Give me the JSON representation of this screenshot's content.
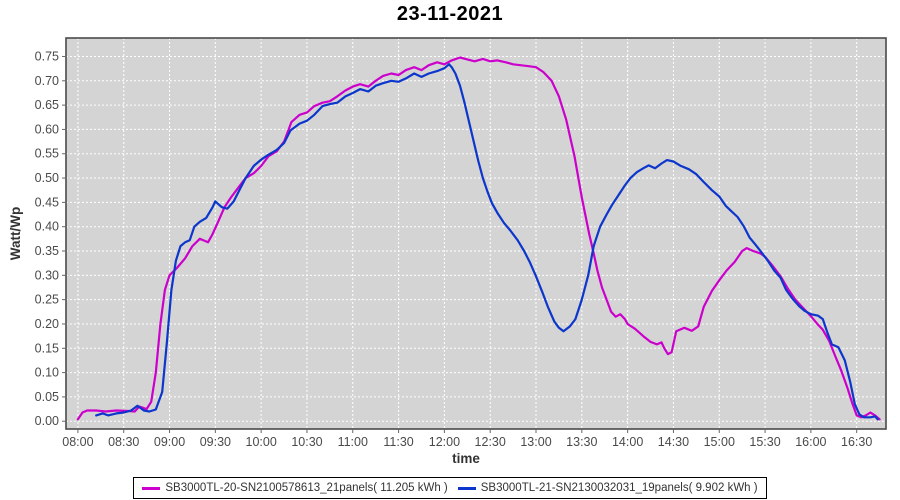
{
  "title": "23-11-2021",
  "legend": {
    "series1_label": "SB3000TL-20-SN2100578613_21panels( 11.205 kWh )",
    "series2_label": "SB3000TL-21-SN2130032031_19panels( 9.902 kWh )"
  },
  "colors": {
    "series1": "#CC00CC",
    "series2": "#0C36CC",
    "plot_background": "#D4D4D4",
    "grid": "#FFFFFF",
    "plot_border": "#4A4A4A",
    "tick_text": "#4A4A4A",
    "axis_label_text": "#333333"
  },
  "chart_data": {
    "type": "line",
    "title": "23-11-2021",
    "xlabel": "time",
    "ylabel": "Watt/Wp",
    "grid": true,
    "legend_position": "bottom",
    "x_ticks": [
      "08:00",
      "08:30",
      "09:00",
      "09:30",
      "10:00",
      "10:30",
      "11:00",
      "11:30",
      "12:00",
      "12:30",
      "13:00",
      "13:30",
      "14:00",
      "14:30",
      "15:00",
      "15:30",
      "16:00",
      "16:30"
    ],
    "y_ticks": [
      0.0,
      0.05,
      0.1,
      0.15,
      0.2,
      0.25,
      0.3,
      0.35,
      0.4,
      0.45,
      0.5,
      0.55,
      0.6,
      0.65,
      0.7,
      0.75
    ],
    "xlim_hours": [
      7.87,
      16.82
    ],
    "ylim": [
      -0.016,
      0.788
    ],
    "series": [
      {
        "name": "SB3000TL-20-SN2100578613_21panels( 11.205 kWh )",
        "color": "#CC00CC",
        "points": [
          [
            8.0,
            0.004
          ],
          [
            8.05,
            0.018
          ],
          [
            8.1,
            0.022
          ],
          [
            8.2,
            0.022
          ],
          [
            8.3,
            0.02
          ],
          [
            8.42,
            0.022
          ],
          [
            8.55,
            0.021
          ],
          [
            8.62,
            0.02
          ],
          [
            8.67,
            0.03
          ],
          [
            8.72,
            0.027
          ],
          [
            8.75,
            0.025
          ],
          [
            8.8,
            0.04
          ],
          [
            8.85,
            0.1
          ],
          [
            8.9,
            0.2
          ],
          [
            8.95,
            0.27
          ],
          [
            9.0,
            0.3
          ],
          [
            9.08,
            0.315
          ],
          [
            9.17,
            0.335
          ],
          [
            9.25,
            0.36
          ],
          [
            9.33,
            0.375
          ],
          [
            9.42,
            0.368
          ],
          [
            9.47,
            0.385
          ],
          [
            9.53,
            0.41
          ],
          [
            9.6,
            0.44
          ],
          [
            9.67,
            0.46
          ],
          [
            9.75,
            0.48
          ],
          [
            9.83,
            0.5
          ],
          [
            9.92,
            0.51
          ],
          [
            10.0,
            0.525
          ],
          [
            10.08,
            0.545
          ],
          [
            10.17,
            0.555
          ],
          [
            10.25,
            0.575
          ],
          [
            10.33,
            0.615
          ],
          [
            10.42,
            0.63
          ],
          [
            10.5,
            0.635
          ],
          [
            10.58,
            0.648
          ],
          [
            10.67,
            0.655
          ],
          [
            10.75,
            0.658
          ],
          [
            10.83,
            0.668
          ],
          [
            10.92,
            0.68
          ],
          [
            11.0,
            0.688
          ],
          [
            11.08,
            0.693
          ],
          [
            11.17,
            0.688
          ],
          [
            11.25,
            0.7
          ],
          [
            11.33,
            0.71
          ],
          [
            11.42,
            0.715
          ],
          [
            11.5,
            0.712
          ],
          [
            11.58,
            0.722
          ],
          [
            11.67,
            0.728
          ],
          [
            11.75,
            0.722
          ],
          [
            11.83,
            0.732
          ],
          [
            11.92,
            0.738
          ],
          [
            12.0,
            0.734
          ],
          [
            12.08,
            0.742
          ],
          [
            12.17,
            0.748
          ],
          [
            12.25,
            0.744
          ],
          [
            12.33,
            0.74
          ],
          [
            12.42,
            0.745
          ],
          [
            12.5,
            0.74
          ],
          [
            12.58,
            0.742
          ],
          [
            12.67,
            0.738
          ],
          [
            12.75,
            0.734
          ],
          [
            12.83,
            0.732
          ],
          [
            12.92,
            0.73
          ],
          [
            13.0,
            0.728
          ],
          [
            13.08,
            0.718
          ],
          [
            13.17,
            0.7
          ],
          [
            13.25,
            0.668
          ],
          [
            13.33,
            0.62
          ],
          [
            13.42,
            0.545
          ],
          [
            13.5,
            0.46
          ],
          [
            13.58,
            0.385
          ],
          [
            13.63,
            0.345
          ],
          [
            13.67,
            0.31
          ],
          [
            13.72,
            0.275
          ],
          [
            13.77,
            0.25
          ],
          [
            13.82,
            0.225
          ],
          [
            13.87,
            0.215
          ],
          [
            13.92,
            0.22
          ],
          [
            13.97,
            0.21
          ],
          [
            14.0,
            0.2
          ],
          [
            14.08,
            0.19
          ],
          [
            14.17,
            0.175
          ],
          [
            14.25,
            0.163
          ],
          [
            14.32,
            0.158
          ],
          [
            14.37,
            0.162
          ],
          [
            14.4,
            0.15
          ],
          [
            14.44,
            0.138
          ],
          [
            14.48,
            0.142
          ],
          [
            14.53,
            0.185
          ],
          [
            14.62,
            0.192
          ],
          [
            14.7,
            0.186
          ],
          [
            14.77,
            0.195
          ],
          [
            14.83,
            0.235
          ],
          [
            14.92,
            0.268
          ],
          [
            15.0,
            0.29
          ],
          [
            15.08,
            0.31
          ],
          [
            15.17,
            0.328
          ],
          [
            15.25,
            0.35
          ],
          [
            15.3,
            0.356
          ],
          [
            15.37,
            0.35
          ],
          [
            15.45,
            0.345
          ],
          [
            15.5,
            0.338
          ],
          [
            15.58,
            0.32
          ],
          [
            15.67,
            0.298
          ],
          [
            15.75,
            0.272
          ],
          [
            15.83,
            0.25
          ],
          [
            15.92,
            0.232
          ],
          [
            16.0,
            0.216
          ],
          [
            16.08,
            0.198
          ],
          [
            16.13,
            0.188
          ],
          [
            16.2,
            0.165
          ],
          [
            16.27,
            0.132
          ],
          [
            16.33,
            0.105
          ],
          [
            16.4,
            0.068
          ],
          [
            16.45,
            0.038
          ],
          [
            16.5,
            0.012
          ],
          [
            16.55,
            0.008
          ],
          [
            16.6,
            0.012
          ],
          [
            16.65,
            0.018
          ],
          [
            16.7,
            0.012
          ],
          [
            16.75,
            0.004
          ]
        ]
      },
      {
        "name": "SB3000TL-21-SN2130032031_19panels( 9.902 kWh )",
        "color": "#0C36CC",
        "points": [
          [
            8.2,
            0.012
          ],
          [
            8.27,
            0.016
          ],
          [
            8.33,
            0.012
          ],
          [
            8.42,
            0.016
          ],
          [
            8.5,
            0.018
          ],
          [
            8.58,
            0.022
          ],
          [
            8.65,
            0.032
          ],
          [
            8.72,
            0.022
          ],
          [
            8.78,
            0.02
          ],
          [
            8.85,
            0.024
          ],
          [
            8.92,
            0.06
          ],
          [
            8.97,
            0.16
          ],
          [
            9.02,
            0.27
          ],
          [
            9.07,
            0.33
          ],
          [
            9.12,
            0.36
          ],
          [
            9.17,
            0.368
          ],
          [
            9.22,
            0.372
          ],
          [
            9.27,
            0.4
          ],
          [
            9.33,
            0.41
          ],
          [
            9.4,
            0.418
          ],
          [
            9.47,
            0.44
          ],
          [
            9.5,
            0.452
          ],
          [
            9.57,
            0.44
          ],
          [
            9.63,
            0.437
          ],
          [
            9.7,
            0.452
          ],
          [
            9.77,
            0.478
          ],
          [
            9.83,
            0.5
          ],
          [
            9.92,
            0.525
          ],
          [
            10.0,
            0.538
          ],
          [
            10.08,
            0.548
          ],
          [
            10.17,
            0.558
          ],
          [
            10.25,
            0.572
          ],
          [
            10.32,
            0.598
          ],
          [
            10.42,
            0.612
          ],
          [
            10.5,
            0.618
          ],
          [
            10.58,
            0.63
          ],
          [
            10.67,
            0.648
          ],
          [
            10.75,
            0.652
          ],
          [
            10.83,
            0.655
          ],
          [
            10.92,
            0.668
          ],
          [
            11.0,
            0.675
          ],
          [
            11.08,
            0.683
          ],
          [
            11.17,
            0.678
          ],
          [
            11.25,
            0.69
          ],
          [
            11.33,
            0.695
          ],
          [
            11.42,
            0.7
          ],
          [
            11.5,
            0.698
          ],
          [
            11.58,
            0.705
          ],
          [
            11.67,
            0.715
          ],
          [
            11.75,
            0.708
          ],
          [
            11.83,
            0.715
          ],
          [
            11.92,
            0.72
          ],
          [
            12.0,
            0.726
          ],
          [
            12.05,
            0.734
          ],
          [
            12.08,
            0.728
          ],
          [
            12.12,
            0.715
          ],
          [
            12.17,
            0.69
          ],
          [
            12.22,
            0.655
          ],
          [
            12.27,
            0.615
          ],
          [
            12.32,
            0.575
          ],
          [
            12.37,
            0.535
          ],
          [
            12.42,
            0.5
          ],
          [
            12.47,
            0.472
          ],
          [
            12.52,
            0.448
          ],
          [
            12.58,
            0.428
          ],
          [
            12.65,
            0.408
          ],
          [
            12.72,
            0.392
          ],
          [
            12.8,
            0.372
          ],
          [
            12.87,
            0.35
          ],
          [
            12.93,
            0.328
          ],
          [
            13.0,
            0.298
          ],
          [
            13.07,
            0.265
          ],
          [
            13.13,
            0.235
          ],
          [
            13.2,
            0.205
          ],
          [
            13.25,
            0.192
          ],
          [
            13.3,
            0.185
          ],
          [
            13.37,
            0.195
          ],
          [
            13.43,
            0.21
          ],
          [
            13.5,
            0.25
          ],
          [
            13.57,
            0.3
          ],
          [
            13.63,
            0.36
          ],
          [
            13.7,
            0.4
          ],
          [
            13.77,
            0.425
          ],
          [
            13.83,
            0.445
          ],
          [
            13.9,
            0.465
          ],
          [
            13.97,
            0.485
          ],
          [
            14.03,
            0.5
          ],
          [
            14.1,
            0.512
          ],
          [
            14.17,
            0.52
          ],
          [
            14.23,
            0.526
          ],
          [
            14.3,
            0.52
          ],
          [
            14.37,
            0.53
          ],
          [
            14.43,
            0.537
          ],
          [
            14.5,
            0.534
          ],
          [
            14.58,
            0.525
          ],
          [
            14.67,
            0.518
          ],
          [
            14.75,
            0.508
          ],
          [
            14.83,
            0.492
          ],
          [
            14.92,
            0.475
          ],
          [
            15.0,
            0.462
          ],
          [
            15.07,
            0.443
          ],
          [
            15.13,
            0.432
          ],
          [
            15.2,
            0.42
          ],
          [
            15.27,
            0.4
          ],
          [
            15.33,
            0.378
          ],
          [
            15.4,
            0.362
          ],
          [
            15.47,
            0.345
          ],
          [
            15.53,
            0.33
          ],
          [
            15.6,
            0.31
          ],
          [
            15.67,
            0.295
          ],
          [
            15.73,
            0.27
          ],
          [
            15.8,
            0.252
          ],
          [
            15.87,
            0.237
          ],
          [
            15.93,
            0.227
          ],
          [
            16.0,
            0.22
          ],
          [
            16.08,
            0.217
          ],
          [
            16.13,
            0.21
          ],
          [
            16.18,
            0.182
          ],
          [
            16.23,
            0.158
          ],
          [
            16.3,
            0.152
          ],
          [
            16.37,
            0.125
          ],
          [
            16.43,
            0.08
          ],
          [
            16.48,
            0.035
          ],
          [
            16.53,
            0.014
          ],
          [
            16.58,
            0.008
          ],
          [
            16.65,
            0.008
          ],
          [
            16.7,
            0.01
          ],
          [
            16.73,
            0.004
          ]
        ]
      }
    ]
  }
}
